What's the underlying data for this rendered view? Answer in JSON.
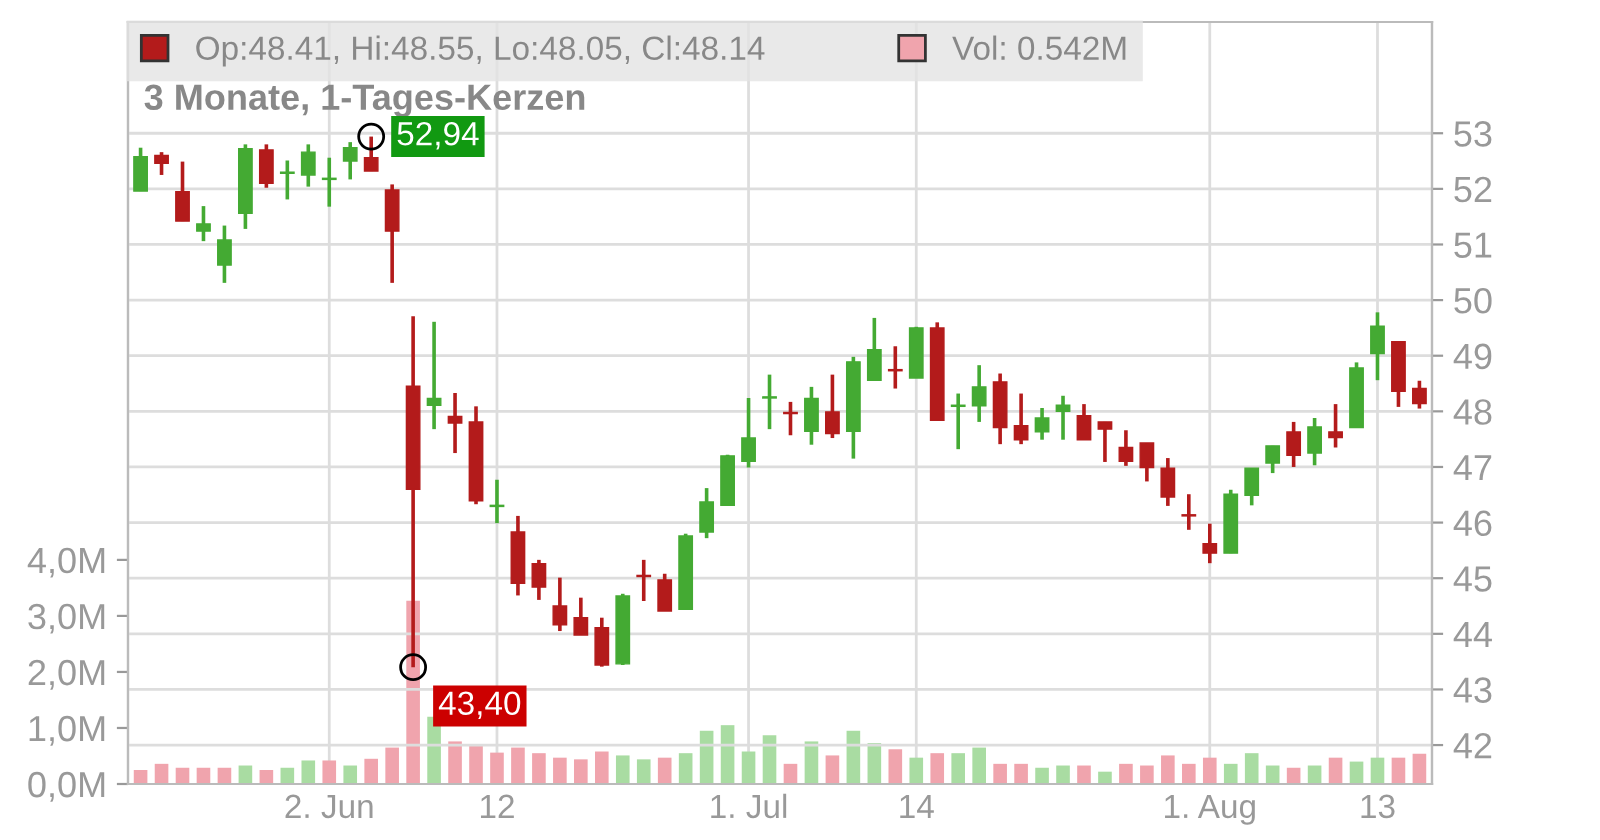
{
  "chart_data": {
    "type": "candlestick",
    "title": "3 Monate, 1-Tages-Kerzen",
    "categories": [
      null,
      null,
      null,
      null,
      null,
      null,
      null,
      null,
      null,
      "2. Jun",
      null,
      null,
      null,
      null,
      null,
      null,
      null,
      "12",
      null,
      null,
      null,
      null,
      null,
      null,
      null,
      null,
      null,
      null,
      null,
      "1. Jul",
      null,
      null,
      null,
      null,
      null,
      null,
      null,
      "14",
      null,
      null,
      null,
      null,
      null,
      null,
      null,
      null,
      null,
      null,
      null,
      null,
      null,
      "1. Aug",
      null,
      null,
      null,
      null,
      null,
      null,
      null,
      "13",
      null,
      null
    ],
    "series": [
      {
        "axis": "y2",
        "name": "Op:48.41, Hi:48.55, Lo:48.05, Cl:48.14",
        "color": "#b31b1b",
        "ohlc": [
          [
            51.96,
            52.74,
            51.96,
            52.58
          ],
          [
            52.6,
            52.66,
            52.25,
            52.46
          ],
          [
            51.95,
            52.49,
            51.42,
            51.42
          ],
          [
            51.24,
            51.69,
            51.06,
            51.37
          ],
          [
            50.63,
            51.34,
            50.31,
            51.08
          ],
          [
            51.56,
            52.8,
            51.28,
            52.72
          ],
          [
            52.7,
            52.8,
            52.02,
            52.1
          ],
          [
            52.28,
            52.51,
            51.81,
            52.3
          ],
          [
            52.25,
            52.8,
            52.04,
            52.66
          ],
          [
            52.17,
            52.56,
            51.68,
            52.19
          ],
          [
            52.5,
            52.84,
            52.17,
            52.74
          ],
          [
            52.56,
            52.94,
            52.32,
            52.32
          ],
          [
            51.98,
            52.08,
            50.31,
            51.24
          ],
          [
            48.45,
            49.71,
            43.4,
            46.6
          ],
          [
            48.11,
            49.61,
            47.68,
            48.23
          ],
          [
            47.91,
            48.33,
            47.25,
            47.79
          ],
          [
            47.81,
            48.09,
            46.33,
            46.39
          ],
          [
            46.29,
            46.77,
            45.99,
            46.31
          ],
          [
            45.83,
            46.12,
            44.69,
            44.91
          ],
          [
            45.26,
            45.33,
            44.61,
            44.84
          ],
          [
            44.5,
            45.01,
            44.05,
            44.16
          ],
          [
            44.29,
            44.65,
            43.98,
            43.98
          ],
          [
            44.11,
            44.29,
            43.41,
            43.44
          ],
          [
            43.46,
            44.72,
            43.44,
            44.68
          ],
          [
            45.05,
            45.33,
            44.59,
            45.03
          ],
          [
            44.97,
            45.08,
            44.41,
            44.41
          ],
          [
            44.44,
            45.8,
            44.44,
            45.76
          ],
          [
            45.83,
            46.62,
            45.72,
            46.37
          ],
          [
            46.31,
            47.22,
            46.31,
            47.2
          ],
          [
            47.1,
            48.24,
            46.99,
            47.52
          ],
          [
            48.24,
            48.66,
            47.68,
            48.26
          ],
          [
            47.98,
            48.17,
            47.57,
            47.96
          ],
          [
            47.64,
            48.44,
            47.4,
            48.23
          ],
          [
            47.99,
            48.66,
            47.52,
            47.6
          ],
          [
            47.64,
            48.98,
            47.15,
            48.89
          ],
          [
            48.56,
            49.68,
            48.56,
            49.11
          ],
          [
            48.75,
            49.17,
            48.41,
            48.73
          ],
          [
            48.6,
            49.52,
            48.6,
            49.5
          ],
          [
            49.5,
            49.6,
            47.84,
            47.84
          ],
          [
            48.09,
            48.32,
            47.32,
            48.11
          ],
          [
            48.1,
            48.83,
            47.81,
            48.44
          ],
          [
            48.53,
            48.68,
            47.41,
            47.71
          ],
          [
            47.74,
            48.32,
            47.41,
            47.49
          ],
          [
            47.63,
            48.06,
            47.49,
            47.88
          ],
          [
            48.0,
            48.28,
            47.49,
            48.11
          ],
          [
            47.92,
            48.13,
            47.49,
            47.49
          ],
          [
            47.81,
            47.81,
            47.09,
            47.68
          ],
          [
            47.35,
            47.66,
            47.02,
            47.1
          ],
          [
            47.43,
            47.43,
            46.74,
            46.99
          ],
          [
            46.98,
            47.16,
            46.3,
            46.46
          ],
          [
            46.14,
            46.51,
            45.87,
            46.12
          ],
          [
            45.62,
            45.98,
            45.27,
            45.45
          ],
          [
            45.45,
            46.59,
            45.45,
            46.51
          ],
          [
            46.49,
            46.98,
            46.31,
            46.98
          ],
          [
            47.07,
            47.38,
            46.89,
            47.38
          ],
          [
            47.63,
            47.81,
            47.0,
            47.21
          ],
          [
            47.25,
            47.88,
            47.03,
            47.72
          ],
          [
            47.63,
            48.13,
            47.35,
            47.53
          ],
          [
            47.71,
            48.88,
            47.71,
            48.78
          ],
          [
            49.04,
            49.78,
            48.56,
            49.53
          ],
          [
            49.25,
            49.25,
            48.08,
            48.36
          ],
          [
            48.41,
            48.55,
            48.05,
            48.14
          ]
        ],
        "colors": [
          "#44aa33",
          "#b31b1b",
          "#b31b1b",
          "#44aa33",
          "#44aa33",
          "#44aa33",
          "#b31b1b",
          "#44aa33",
          "#44aa33",
          "#44aa33",
          "#44aa33",
          "#b31b1b",
          "#b31b1b",
          "#b31b1b",
          "#44aa33",
          "#b31b1b",
          "#b31b1b",
          "#44aa33",
          "#b31b1b",
          "#b31b1b",
          "#b31b1b",
          "#b31b1b",
          "#b31b1b",
          "#44aa33",
          "#b31b1b",
          "#b31b1b",
          "#44aa33",
          "#44aa33",
          "#44aa33",
          "#44aa33",
          "#44aa33",
          "#b31b1b",
          "#44aa33",
          "#b31b1b",
          "#44aa33",
          "#44aa33",
          "#b31b1b",
          "#44aa33",
          "#b31b1b",
          "#44aa33",
          "#44aa33",
          "#b31b1b",
          "#b31b1b",
          "#44aa33",
          "#44aa33",
          "#b31b1b",
          "#b31b1b",
          "#b31b1b",
          "#b31b1b",
          "#b31b1b",
          "#b31b1b",
          "#b31b1b",
          "#44aa33",
          "#44aa33",
          "#44aa33",
          "#b31b1b",
          "#44aa33",
          "#b31b1b",
          "#44aa33",
          "#44aa33",
          "#b31b1b",
          "#b31b1b"
        ]
      },
      {
        "type": "bar",
        "name": "Vol: 0.542M",
        "color": "#f0a4ad",
        "values": [
          0.25,
          0.36,
          0.29,
          0.29,
          0.29,
          0.33,
          0.25,
          0.29,
          0.42,
          0.42,
          0.33,
          0.45,
          0.65,
          3.27,
          1.2,
          0.76,
          0.69,
          0.56,
          0.65,
          0.55,
          0.47,
          0.44,
          0.58,
          0.51,
          0.44,
          0.47,
          0.55,
          0.95,
          1.05,
          0.58,
          0.87,
          0.36,
          0.76,
          0.51,
          0.95,
          0.73,
          0.62,
          0.47,
          0.55,
          0.55,
          0.65,
          0.36,
          0.36,
          0.29,
          0.33,
          0.33,
          0.22,
          0.36,
          0.33,
          0.51,
          0.36,
          0.47,
          0.36,
          0.55,
          0.33,
          0.29,
          0.33,
          0.47,
          0.4,
          0.47,
          0.47,
          0.54
        ],
        "colors": [
          "#f0a4ad",
          "#f0a4ad",
          "#f0a4ad",
          "#f0a4ad",
          "#f0a4ad",
          "#a9dca2",
          "#f0a4ad",
          "#a9dca2",
          "#a9dca2",
          "#f0a4ad",
          "#a9dca2",
          "#f0a4ad",
          "#f0a4ad",
          "#f0a4ad",
          "#a9dca2",
          "#f0a4ad",
          "#f0a4ad",
          "#f0a4ad",
          "#f0a4ad",
          "#f0a4ad",
          "#f0a4ad",
          "#f0a4ad",
          "#f0a4ad",
          "#a9dca2",
          "#a9dca2",
          "#f0a4ad",
          "#a9dca2",
          "#a9dca2",
          "#a9dca2",
          "#a9dca2",
          "#a9dca2",
          "#f0a4ad",
          "#a9dca2",
          "#f0a4ad",
          "#a9dca2",
          "#a9dca2",
          "#f0a4ad",
          "#a9dca2",
          "#f0a4ad",
          "#a9dca2",
          "#a9dca2",
          "#f0a4ad",
          "#f0a4ad",
          "#a9dca2",
          "#a9dca2",
          "#f0a4ad",
          "#a9dca2",
          "#f0a4ad",
          "#f0a4ad",
          "#f0a4ad",
          "#f0a4ad",
          "#f0a4ad",
          "#a9dca2",
          "#a9dca2",
          "#a9dca2",
          "#f0a4ad",
          "#a9dca2",
          "#f0a4ad",
          "#a9dca2",
          "#a9dca2",
          "#f0a4ad",
          "#f0a4ad"
        ]
      }
    ],
    "ylim": [
      0,
      13.6
    ],
    "yticks": [
      {
        "value": 0,
        "label": "0,0M"
      },
      {
        "value": 1,
        "label": "1,0M"
      },
      {
        "value": 2,
        "label": "2,0M"
      },
      {
        "value": 3,
        "label": "3,0M"
      },
      {
        "value": 4,
        "label": "4,0M"
      }
    ],
    "y2lim": [
      41.3,
      55.0
    ],
    "y2ticks": [
      42,
      43,
      44,
      45,
      46,
      47,
      48,
      49,
      50,
      51,
      52,
      53
    ],
    "annotations": [
      "52,94",
      "43,40"
    ],
    "grid": true,
    "legend": "top left"
  }
}
